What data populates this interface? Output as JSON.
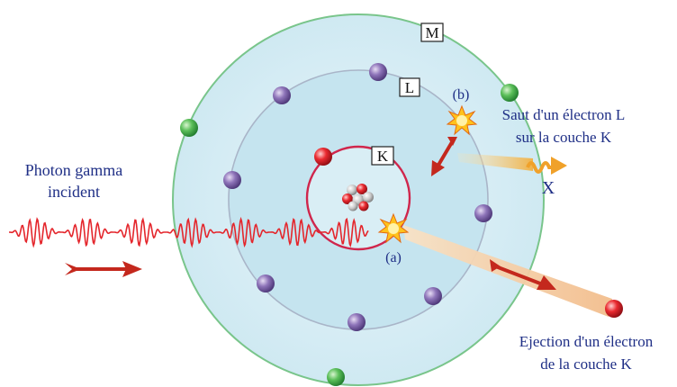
{
  "shells": {
    "k": "K",
    "l": "L",
    "m": "M"
  },
  "labels": {
    "photon_line1": "Photon gamma",
    "photon_line2": "incident",
    "event_a": "(a)",
    "event_b": "(b)",
    "jump_line1": "Saut d'un électron L",
    "jump_line2": "sur la couche K",
    "xray": "X",
    "ejection_line1": "Ejection d'un électron",
    "ejection_line2": "de la couche K"
  },
  "colors": {
    "atom_fill": "#d4ecf4",
    "outer_shell": "#79c58b",
    "middle_shell": "#a9b5c8",
    "k_shell": "#d0264c",
    "wave": "#e4262c",
    "arrow": "#c4281d",
    "beam": "#f4c69b",
    "xray_arrow": "#f0a12a",
    "text": "#1f2f86",
    "electron_green": "#3ea54a",
    "electron_purple": "#7a5fa6",
    "electron_red": "#e2222d",
    "spark": "#ffc21c"
  },
  "icons": [
    "nucleus-icon",
    "spark-icon",
    "wave-icon",
    "arrow-icon"
  ]
}
